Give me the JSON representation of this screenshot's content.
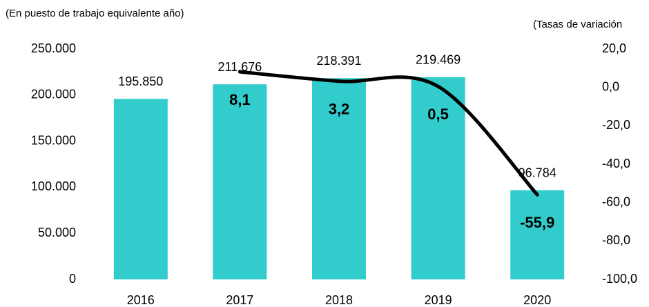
{
  "chart_data": {
    "type": "bar_line",
    "annotations": [
      "(En puesto de trabajo equivalente año)",
      "(Tasas de variación"
    ],
    "categories": [
      "2016",
      "2017",
      "2018",
      "2019",
      "2020"
    ],
    "series": [
      {
        "name": "Puestos",
        "type": "bar",
        "color": "#33cccc",
        "values": [
          195850,
          211676,
          218391,
          219469,
          96784
        ],
        "value_labels": [
          "195.850",
          "211.676",
          "218.391",
          "219.469",
          "96.784"
        ]
      },
      {
        "name": "Tasa de variación",
        "type": "line",
        "axis": "y2",
        "color": "#000000",
        "values": [
          null,
          8.1,
          3.2,
          0.5,
          -55.9
        ],
        "value_labels": [
          null,
          "8,1",
          "3,2",
          "0,5",
          "-55,9"
        ]
      }
    ],
    "ylim": [
      0,
      250000
    ],
    "yticks": [
      0,
      {
        "value": 50000,
        "label": "50.000"
      },
      {
        "value": 100000,
        "label": "100.000"
      },
      {
        "value": 150000,
        "label": "150.000"
      },
      {
        "value": 200000,
        "label": "200.000"
      },
      {
        "value": 250000,
        "label": "250.000"
      }
    ],
    "y2lim": [
      -100,
      20
    ],
    "y2ticks": [
      {
        "value": -100,
        "label": "-100,0"
      },
      {
        "value": -80,
        "label": "-80,0"
      },
      {
        "value": -60,
        "label": "-60,0"
      },
      {
        "value": -40,
        "label": "-40,0"
      },
      {
        "value": -20,
        "label": "-20,0"
      },
      {
        "value": 0,
        "label": "0,0"
      },
      {
        "value": 20,
        "label": "20,0"
      }
    ],
    "grid": false
  }
}
